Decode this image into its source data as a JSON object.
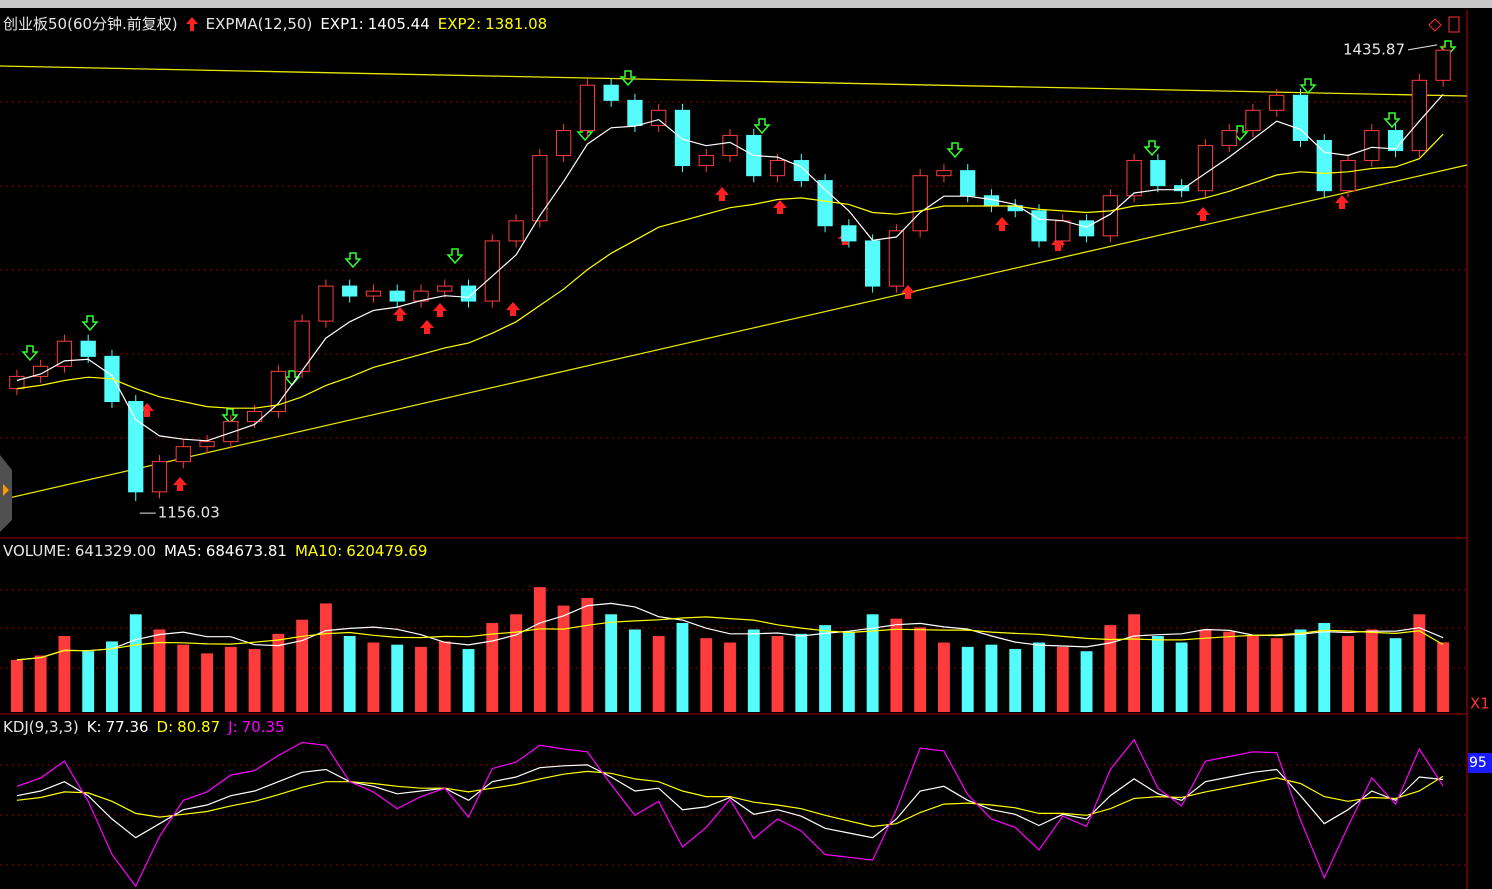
{
  "chart_data": [
    {
      "type": "candlestick",
      "title": "创业板50(60分钟.前复权)",
      "indicator": "EXPMA(12,50)",
      "ylim": [
        1134,
        1456
      ],
      "up_color": "#ff3c3c",
      "down_color": "#54fcfc",
      "open": [
        1225.0,
        1232.5,
        1238.7,
        1254.1,
        1244.8,
        1217.1,
        1161.7,
        1180.2,
        1189.4,
        1192.5,
        1204.8,
        1211.0,
        1235.6,
        1266.4,
        1287.9,
        1281.8,
        1284.8,
        1278.7,
        1284.8,
        1287.9,
        1278.7,
        1315.6,
        1327.9,
        1368.0,
        1383.3,
        1411.1,
        1401.8,
        1386.4,
        1395.7,
        1361.8,
        1368.0,
        1380.3,
        1355.6,
        1364.9,
        1352.6,
        1324.9,
        1315.6,
        1287.9,
        1321.8,
        1355.6,
        1358.7,
        1343.3,
        1337.2,
        1334.1,
        1315.6,
        1327.9,
        1318.7,
        1343.3,
        1364.9,
        1349.5,
        1346.4,
        1374.1,
        1383.3,
        1395.7,
        1404.9,
        1377.2,
        1346.4,
        1364.9,
        1383.3,
        1371.0,
        1414.1
      ],
      "high": [
        1236.5,
        1242.7,
        1258.1,
        1258.1,
        1248.8,
        1221.1,
        1184.2,
        1193.4,
        1196.5,
        1208.8,
        1215.0,
        1239.6,
        1270.4,
        1291.9,
        1291.9,
        1288.8,
        1288.8,
        1288.8,
        1291.9,
        1291.9,
        1319.6,
        1331.9,
        1372.0,
        1387.3,
        1415.1,
        1415.1,
        1405.8,
        1399.7,
        1399.7,
        1372.0,
        1384.3,
        1384.3,
        1368.9,
        1368.9,
        1356.6,
        1328.9,
        1319.6,
        1325.8,
        1359.6,
        1362.7,
        1362.7,
        1347.3,
        1341.2,
        1338.1,
        1331.9,
        1331.9,
        1347.3,
        1368.9,
        1368.9,
        1353.5,
        1378.1,
        1387.3,
        1399.7,
        1408.9,
        1408.9,
        1381.2,
        1368.9,
        1387.3,
        1387.3,
        1418.1,
        1435.87
      ],
      "low": [
        1221.0,
        1228.5,
        1234.7,
        1240.8,
        1213.1,
        1156.03,
        1157.7,
        1176.2,
        1185.4,
        1188.5,
        1200.8,
        1207.0,
        1231.6,
        1262.4,
        1277.8,
        1277.8,
        1274.7,
        1274.7,
        1280.8,
        1274.7,
        1274.7,
        1311.6,
        1323.9,
        1364.0,
        1379.3,
        1397.8,
        1382.4,
        1382.4,
        1357.8,
        1357.8,
        1364.0,
        1351.6,
        1351.6,
        1348.6,
        1320.9,
        1311.6,
        1283.9,
        1283.9,
        1317.8,
        1351.6,
        1339.3,
        1333.2,
        1330.1,
        1311.6,
        1311.6,
        1314.7,
        1314.7,
        1339.3,
        1345.5,
        1342.4,
        1342.4,
        1370.1,
        1379.3,
        1391.7,
        1373.2,
        1342.4,
        1342.4,
        1360.9,
        1367.0,
        1367.0,
        1410.1
      ],
      "close": [
        1232.5,
        1238.7,
        1254.1,
        1244.8,
        1217.1,
        1161.7,
        1180.2,
        1189.4,
        1192.5,
        1204.8,
        1211.0,
        1235.6,
        1266.4,
        1287.9,
        1281.8,
        1284.8,
        1278.7,
        1284.8,
        1287.9,
        1278.7,
        1315.6,
        1327.9,
        1368.0,
        1383.3,
        1411.1,
        1401.8,
        1386.4,
        1395.7,
        1361.8,
        1368.0,
        1380.3,
        1355.6,
        1364.9,
        1352.6,
        1324.9,
        1315.6,
        1287.9,
        1321.8,
        1355.6,
        1358.7,
        1343.3,
        1337.2,
        1334.1,
        1315.6,
        1327.9,
        1318.7,
        1343.3,
        1364.9,
        1349.5,
        1346.4,
        1374.1,
        1383.3,
        1395.7,
        1404.9,
        1377.2,
        1346.4,
        1364.9,
        1383.3,
        1371.0,
        1414.1,
        1432.6
      ],
      "series": [
        {
          "name": "EXP1",
          "color": "#ffffff",
          "values": [
            1230,
            1234,
            1242,
            1243,
            1233,
            1206,
            1196,
            1194,
            1193,
            1198,
            1203,
            1216,
            1236,
            1256,
            1266,
            1273,
            1275,
            1279,
            1282,
            1281,
            1294,
            1307,
            1331,
            1352,
            1375,
            1385,
            1386,
            1390,
            1378,
            1374,
            1376,
            1368,
            1367,
            1361,
            1347,
            1334,
            1316,
            1318,
            1333,
            1343,
            1343,
            1341,
            1338,
            1329,
            1328,
            1324,
            1332,
            1345,
            1347,
            1347,
            1357,
            1367,
            1378,
            1389,
            1384,
            1370,
            1368,
            1373,
            1372,
            1389,
            1405.44
          ]
        },
        {
          "name": "EXP2",
          "color": "#ffff00",
          "values": [
            1225,
            1227,
            1230,
            1232,
            1231,
            1225,
            1220,
            1217,
            1214,
            1213,
            1213,
            1215,
            1220,
            1227,
            1232,
            1238,
            1242,
            1246,
            1250,
            1253,
            1259,
            1266,
            1276,
            1286,
            1298,
            1308,
            1316,
            1324,
            1328,
            1332,
            1336,
            1338,
            1341,
            1342,
            1340,
            1338,
            1333,
            1332,
            1334,
            1337,
            1337,
            1337,
            1337,
            1335,
            1334,
            1333,
            1334,
            1337,
            1338,
            1339,
            1342,
            1346,
            1351,
            1356,
            1358,
            1357,
            1358,
            1360,
            1361,
            1366,
            1381.08
          ]
        }
      ]
    },
    {
      "type": "bar",
      "ylim": [
        0,
        1400000
      ],
      "unit_label": "X1",
      "series": [
        {
          "name": "VOLUME",
          "last_label": "641329.00",
          "values": [
            480000,
            520000,
            700000,
            560000,
            650000,
            900000,
            760000,
            620000,
            540000,
            600000,
            580000,
            720000,
            850000,
            1000000,
            700000,
            640000,
            620000,
            600000,
            650000,
            580000,
            820000,
            900000,
            1150000,
            980000,
            1050000,
            900000,
            760000,
            700000,
            820000,
            680000,
            640000,
            760000,
            700000,
            720000,
            800000,
            740000,
            900000,
            860000,
            780000,
            640000,
            600000,
            620000,
            580000,
            640000,
            600000,
            560000,
            800000,
            900000,
            700000,
            640000,
            760000,
            740000,
            700000,
            680000,
            760000,
            820000,
            700000,
            760000,
            680000,
            900000,
            641329
          ]
        },
        {
          "name": "MA5",
          "color": "#ffffff",
          "values": [
            480000,
            500000,
            567000,
            565000,
            582000,
            666000,
            714000,
            736000,
            694000,
            694000,
            620000,
            612000,
            658000,
            750000,
            770000,
            782000,
            762000,
            712000,
            642000,
            618000,
            654000,
            710000,
            820000,
            886000,
            980000,
            1000000,
            968000,
            878000,
            846000,
            772000,
            720000,
            720000,
            728000,
            700000,
            724000,
            744000,
            772000,
            804000,
            816000,
            784000,
            764000,
            700000,
            644000,
            616000,
            608000,
            600000,
            636000,
            700000,
            712000,
            720000,
            760000,
            752000,
            708000,
            704000,
            716000,
            740000,
            732000,
            744000,
            744000,
            776000,
            684673.81
          ]
        },
        {
          "name": "MA10",
          "color": "#ffff00",
          "values": [
            480000,
            500000,
            567000,
            565000,
            582000,
            618000,
            640000,
            637000,
            627000,
            625000,
            643000,
            663000,
            697000,
            722000,
            732000,
            706000,
            687000,
            685000,
            696000,
            694000,
            718000,
            736000,
            766000,
            764000,
            799000,
            827000,
            839000,
            849000,
            866000,
            876000,
            860000,
            846000,
            803000,
            773000,
            748000,
            732000,
            746000,
            762000,
            758000,
            754000,
            754000,
            736000,
            724000,
            716000,
            696000,
            678000,
            668000,
            672000,
            664000,
            664000,
            680000,
            694000,
            706000,
            710000,
            726000,
            752000,
            746000,
            733000,
            724000,
            748000,
            620479.69
          ]
        }
      ]
    },
    {
      "type": "line",
      "title": "KDJ(9,3,3)",
      "ylim": [
        -40,
        125
      ],
      "yticks": [
        95
      ],
      "series": [
        {
          "name": "K",
          "color": "#ffffff",
          "values": [
            60,
            65,
            75,
            60,
            35,
            15,
            30,
            45,
            50,
            60,
            65,
            75,
            85,
            88,
            75,
            70,
            62,
            65,
            68,
            55,
            75,
            80,
            90,
            92,
            93,
            80,
            65,
            68,
            45,
            48,
            58,
            40,
            45,
            38,
            25,
            20,
            15,
            35,
            65,
            70,
            55,
            45,
            40,
            28,
            40,
            35,
            60,
            78,
            62,
            55,
            75,
            80,
            85,
            88,
            60,
            30,
            45,
            65,
            55,
            80,
            77.36
          ]
        },
        {
          "name": "D",
          "color": "#ffff00",
          "values": [
            55,
            58,
            64,
            63,
            54,
            41,
            37,
            40,
            43,
            49,
            54,
            61,
            69,
            75,
            75,
            73,
            70,
            68,
            68,
            64,
            68,
            72,
            78,
            83,
            86,
            84,
            78,
            75,
            65,
            59,
            59,
            53,
            50,
            46,
            39,
            33,
            27,
            30,
            42,
            51,
            52,
            50,
            47,
            41,
            41,
            39,
            46,
            57,
            59,
            58,
            64,
            69,
            74,
            79,
            73,
            59,
            54,
            58,
            57,
            65,
            80.87
          ]
        },
        {
          "name": "J",
          "color": "#ff00ff",
          "values": [
            70,
            79,
            97,
            54,
            -3,
            -37,
            16,
            55,
            64,
            82,
            87,
            103,
            117,
            114,
            75,
            64,
            46,
            59,
            68,
            37,
            89,
            96,
            114,
            110,
            107,
            72,
            39,
            54,
            5,
            26,
            56,
            14,
            35,
            22,
            -3,
            -6,
            -9,
            45,
            111,
            108,
            61,
            35,
            26,
            2,
            38,
            27,
            88,
            120,
            68,
            49,
            97,
            102,
            107,
            106,
            34,
            -28,
            27,
            79,
            51,
            110,
            70.35
          ]
        }
      ]
    }
  ]
}
